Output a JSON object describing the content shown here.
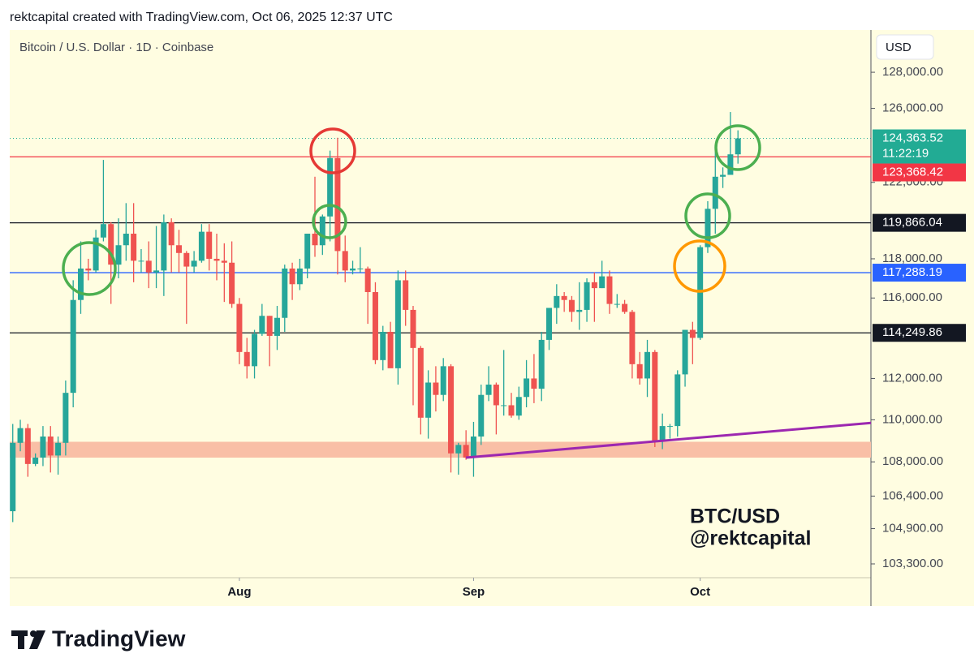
{
  "header": {
    "attribution": "rektcapital created with TradingView.com, Oct 06, 2025 12:37 UTC"
  },
  "footer": {
    "brand": "TradingView"
  },
  "chart_data": {
    "type": "candlestick",
    "title": "Bitcoin / U.S. Dollar · 1D · Coinbase",
    "currency": "USD",
    "annotations": [
      "BTC/USD",
      "@rektcapital"
    ],
    "up_color": "#26a69a",
    "down_color": "#ef5350",
    "log_scale": true,
    "open": [
      105700,
      108900,
      109600,
      107900,
      108200,
      109200,
      108300,
      108900,
      111300,
      115900,
      117500,
      117400,
      119100,
      119800,
      117700,
      118700,
      119300,
      117900,
      117900,
      117300,
      117400,
      119900,
      118700,
      118300,
      117600,
      117900,
      119400,
      118000,
      117900,
      117800,
      115700,
      113300,
      112600,
      114200,
      115100,
      114100,
      115000,
      117500,
      116700,
      117500,
      119300,
      118700,
      120200,
      123300,
      118400,
      117400,
      117500,
      117500,
      116300,
      112900,
      114300,
      112500,
      116900,
      115400,
      113500,
      110100,
      111800,
      111200,
      112600,
      108400,
      108800,
      108200,
      109200,
      111200,
      111700,
      110700,
      110700,
      110200,
      111100,
      112000,
      111500,
      113900,
      115500,
      116100,
      115900,
      115300,
      115400,
      116800,
      116500,
      117100,
      115700,
      115700,
      115300,
      112700,
      112000,
      113300,
      109000,
      109700,
      109700,
      112200,
      114400,
      114000,
      118600,
      120600,
      122300,
      122400,
      123500
    ],
    "high": [
      109800,
      110000,
      109800,
      108400,
      109700,
      109700,
      109200,
      111900,
      116900,
      118900,
      118000,
      119500,
      123200,
      119900,
      120100,
      120900,
      120900,
      118500,
      118900,
      119700,
      120300,
      120100,
      119500,
      118400,
      118400,
      119800,
      119800,
      119300,
      118800,
      118900,
      116000,
      114000,
      114400,
      115700,
      115100,
      115600,
      117700,
      117800,
      118000,
      119300,
      122300,
      120300,
      123700,
      124400,
      119200,
      117900,
      118600,
      117600,
      116800,
      114600,
      114800,
      117400,
      117400,
      115600,
      113600,
      112400,
      112600,
      113000,
      112700,
      108900,
      109500,
      109900,
      111700,
      112600,
      111800,
      113400,
      111300,
      111600,
      112900,
      113200,
      114300,
      115500,
      116700,
      116300,
      116100,
      116800,
      117000,
      117300,
      117900,
      117400,
      116200,
      115900,
      115400,
      113300,
      113900,
      113400,
      110300,
      109800,
      112400,
      114400,
      114800,
      118700,
      121000,
      123900,
      122800,
      125800,
      124800
    ],
    "low": [
      105200,
      108500,
      107300,
      107800,
      107800,
      107500,
      107400,
      108300,
      110600,
      115200,
      116900,
      117300,
      118900,
      115700,
      117000,
      117900,
      116800,
      117300,
      116500,
      116500,
      116100,
      117300,
      117300,
      114700,
      117300,
      117800,
      117400,
      116900,
      115800,
      115500,
      112700,
      112000,
      112000,
      114100,
      112600,
      113400,
      114300,
      115900,
      116400,
      117000,
      118100,
      118200,
      118900,
      117200,
      116800,
      117200,
      117300,
      114700,
      112700,
      112400,
      112600,
      111700,
      114600,
      110700,
      109300,
      109100,
      110400,
      110900,
      107500,
      107400,
      108100,
      107300,
      108800,
      110900,
      109300,
      110200,
      110100,
      110000,
      110600,
      110800,
      110900,
      113400,
      114700,
      115300,
      114800,
      114400,
      114800,
      114800,
      116500,
      115200,
      115500,
      115200,
      112000,
      111700,
      111100,
      108700,
      108600,
      109100,
      109200,
      111600,
      112700,
      113900,
      118300,
      119300,
      121700,
      122400,
      123000
    ],
    "close": [
      108900,
      109600,
      107900,
      108200,
      109200,
      108300,
      108900,
      111300,
      115900,
      117500,
      117400,
      119100,
      119800,
      117700,
      118700,
      119300,
      117900,
      117900,
      117300,
      117400,
      119900,
      118700,
      118300,
      117600,
      117900,
      119400,
      118000,
      117900,
      117800,
      115700,
      113300,
      112600,
      114200,
      115100,
      114100,
      115000,
      117500,
      116700,
      117500,
      119300,
      118700,
      120200,
      123300,
      118400,
      117400,
      117500,
      117500,
      116300,
      112900,
      114300,
      112500,
      116900,
      115400,
      113500,
      110100,
      111800,
      111200,
      112600,
      108400,
      108800,
      108200,
      109200,
      111200,
      111700,
      110700,
      110700,
      110200,
      111100,
      112000,
      111500,
      113900,
      115500,
      116100,
      115900,
      115300,
      115400,
      116800,
      116500,
      117100,
      115700,
      115700,
      115300,
      112700,
      112000,
      113300,
      109000,
      109700,
      109700,
      112200,
      114400,
      114000,
      118600,
      120600,
      122300,
      122400,
      123500,
      124363.52
    ],
    "xlim": [
      -0.4,
      113.6
    ],
    "xticks": [
      {
        "value": 30,
        "label": "Aug"
      },
      {
        "value": 61,
        "label": "Sep"
      },
      {
        "value": 91,
        "label": "Oct"
      }
    ],
    "ylim": [
      102680,
      130380
    ],
    "yticks": [
      {
        "value": 128000,
        "label": "128,000.00"
      },
      {
        "value": 126000,
        "label": "126,000.00"
      },
      {
        "value": 122000,
        "label": "122,000.00"
      },
      {
        "value": 118000,
        "label": "118,000.00"
      },
      {
        "value": 116000,
        "label": "116,000.00"
      },
      {
        "value": 112000,
        "label": "112,000.00"
      },
      {
        "value": 110000,
        "label": "110,000.00"
      },
      {
        "value": 108000,
        "label": "108,000.00"
      },
      {
        "value": 106400,
        "label": "106,400.00"
      },
      {
        "value": 104900,
        "label": "104,900.00"
      },
      {
        "value": 103300,
        "label": "103,300.00"
      }
    ],
    "last_price": {
      "value": 124363.52,
      "label": "124,363.52",
      "countdown": "11:22:19",
      "color": "#22ab94"
    },
    "levels": [
      {
        "value": 123368.42,
        "label": "123,368.42",
        "color": "#f23645"
      },
      {
        "value": 119866.04,
        "label": "119,866.04",
        "color": "#131722"
      },
      {
        "value": 117288.19,
        "label": "117,288.19",
        "color": "#2962ff"
      },
      {
        "value": 114249.86,
        "label": "114,249.86",
        "color": "#131722"
      }
    ],
    "zone": {
      "ylim": [
        108200,
        108950
      ],
      "color": "#f9bfa6"
    },
    "trendline": {
      "x": [
        60,
        113.6
      ],
      "values": [
        108200,
        109850
      ],
      "color": "#9c27b0"
    }
  }
}
